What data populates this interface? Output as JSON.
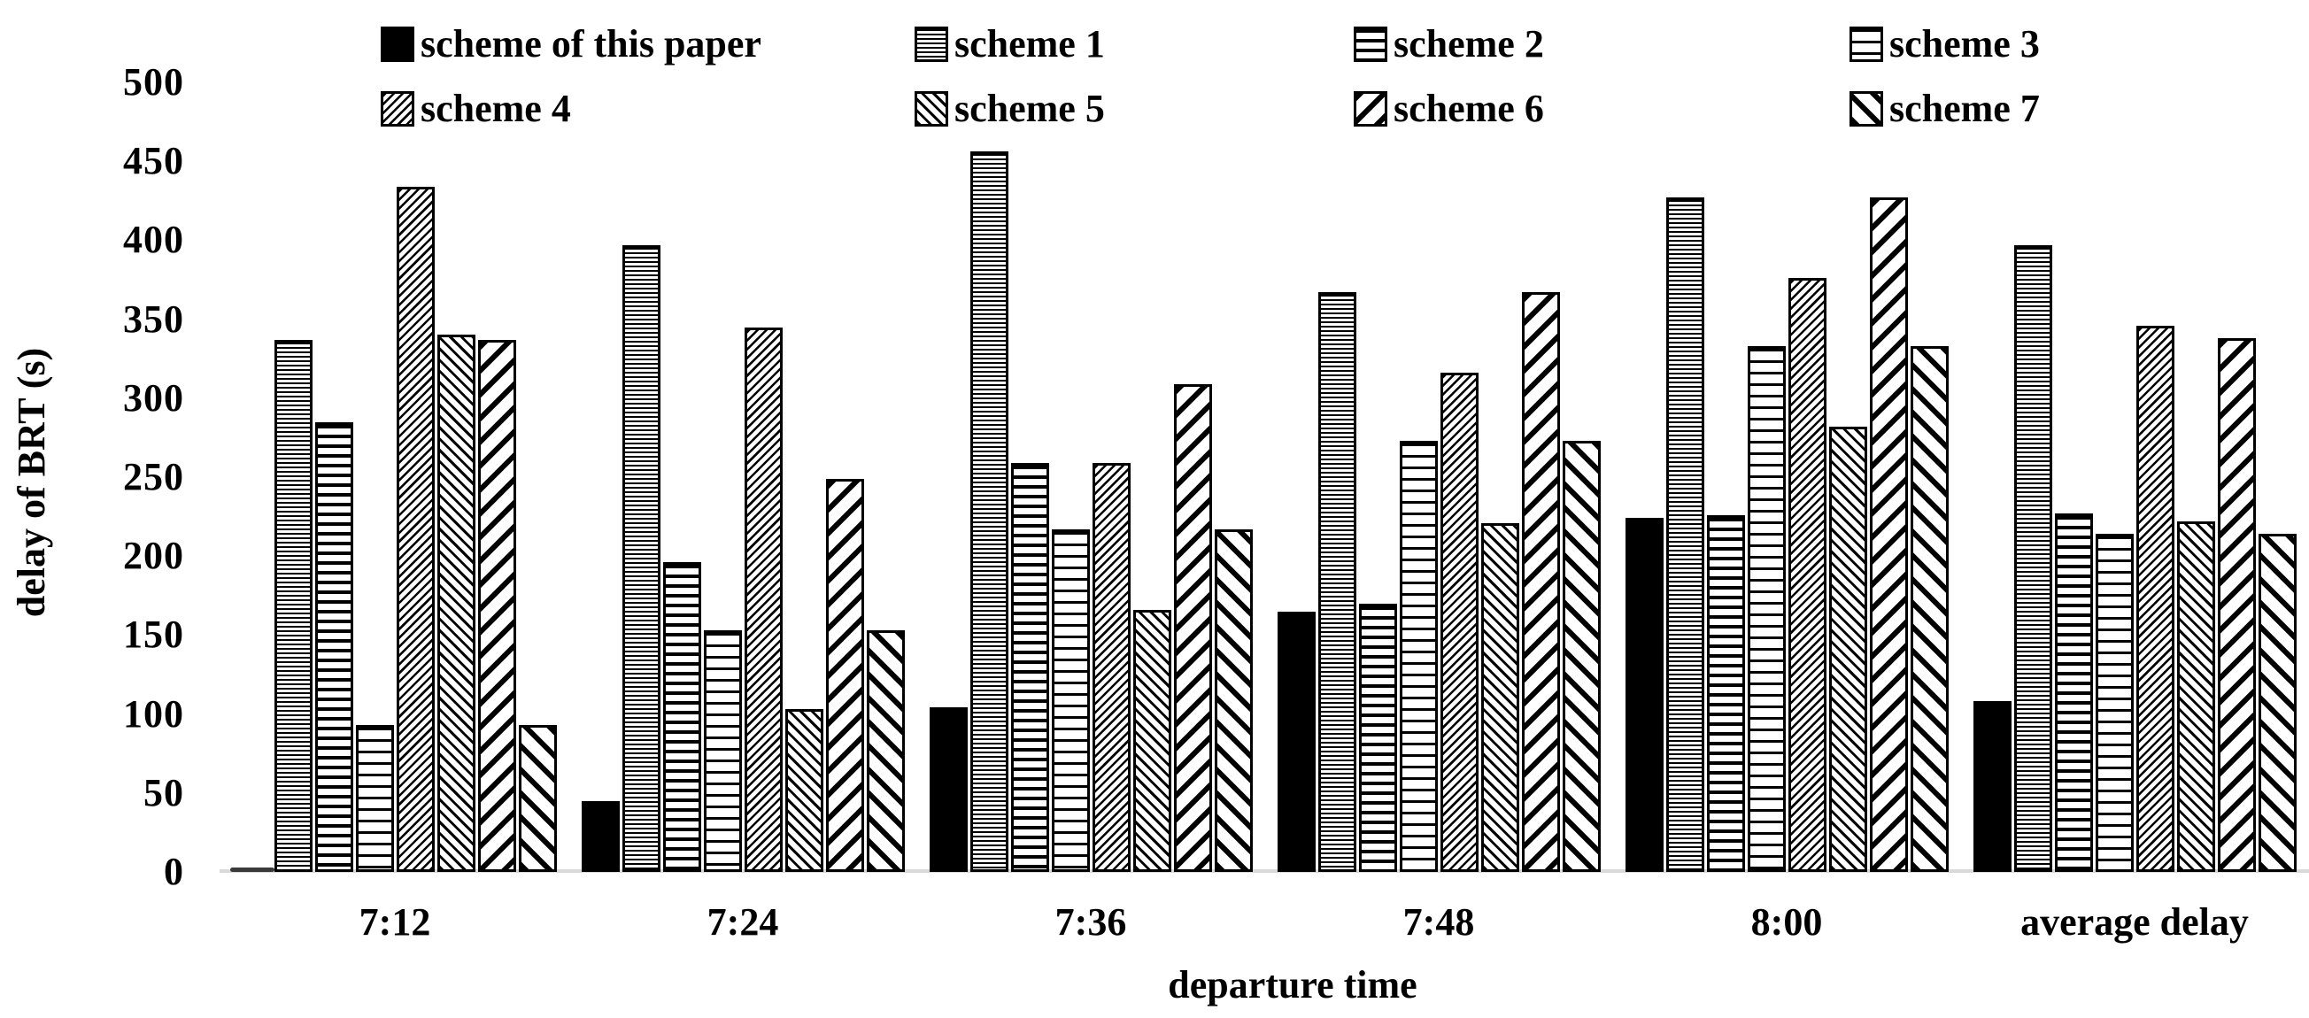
{
  "chart_data": {
    "type": "bar",
    "title": "",
    "xlabel": "departure time",
    "ylabel": "delay of BRT (s)",
    "ylim": [
      0,
      500
    ],
    "yticks": [
      500,
      450,
      400,
      350,
      300,
      250,
      200,
      150,
      100,
      50,
      0
    ],
    "grid": false,
    "legend_position": "top",
    "categories": [
      "7:12",
      "7:24",
      "7:36",
      "7:48",
      "8:00",
      "average delay"
    ],
    "series": [
      {
        "name": "scheme of this paper",
        "pattern": "solid-black",
        "values": [
          3,
          45,
          104,
          165,
          224,
          108
        ]
      },
      {
        "name": "scheme 1",
        "pattern": "hlines-fine",
        "values": [
          337,
          397,
          456,
          367,
          427,
          397
        ]
      },
      {
        "name": "scheme 2",
        "pattern": "hlines-medium",
        "values": [
          285,
          196,
          259,
          170,
          226,
          227
        ]
      },
      {
        "name": "scheme 3",
        "pattern": "hlines-light",
        "values": [
          93,
          153,
          217,
          273,
          333,
          214
        ]
      },
      {
        "name": "scheme 4",
        "pattern": "diag-fwd-fine",
        "values": [
          434,
          345,
          259,
          316,
          376,
          346
        ]
      },
      {
        "name": "scheme 5",
        "pattern": "diag-back-fine",
        "values": [
          340,
          103,
          166,
          221,
          282,
          222
        ]
      },
      {
        "name": "scheme 6",
        "pattern": "diag-fwd-wide",
        "values": [
          337,
          249,
          309,
          367,
          427,
          338
        ]
      },
      {
        "name": "scheme 7",
        "pattern": "diag-back-wide",
        "values": [
          93,
          153,
          217,
          273,
          333,
          214
        ]
      }
    ],
    "colors": {
      "bar_outline": "#000000",
      "baseline": "#d9d9d9",
      "tiny_first_bar": "#3a3a3a",
      "text": "#000000",
      "background": "#ffffff"
    }
  }
}
